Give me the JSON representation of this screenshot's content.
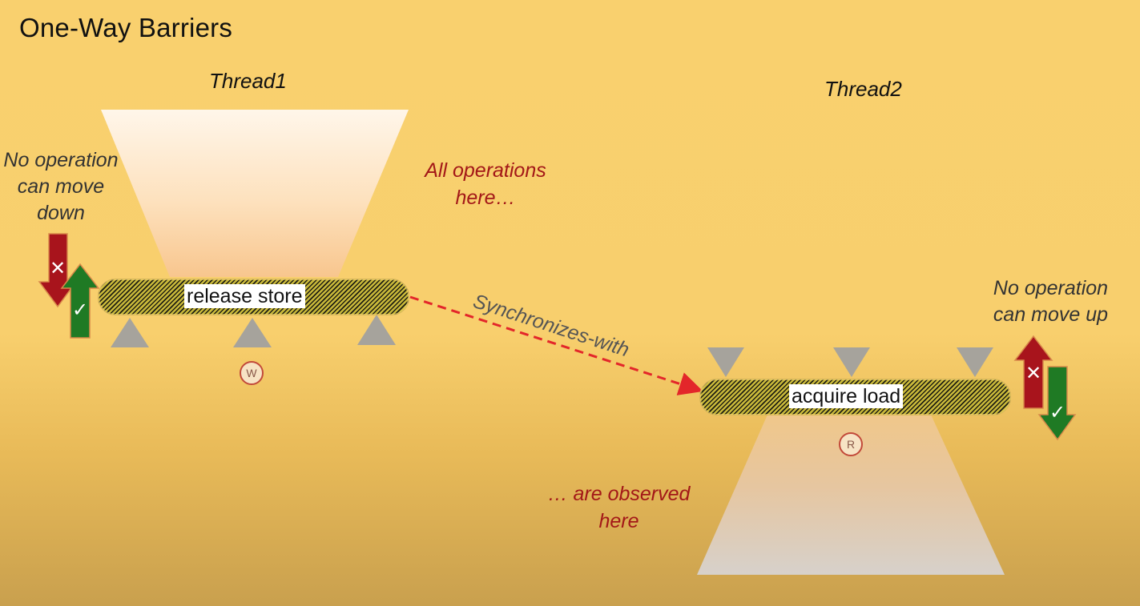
{
  "slide": {
    "title": "One-Way Barriers"
  },
  "thread1": {
    "label": "Thread1",
    "barrier_label": "release store",
    "marker": "W",
    "rule": "No operation can move down"
  },
  "thread2": {
    "label": "Thread2",
    "barrier_label": "acquire load",
    "marker": "R",
    "rule": "No operation can move up"
  },
  "notes": {
    "all_operations_line1": "All operations",
    "all_operations_line2": "here…",
    "observed_line1": "… are observed",
    "observed_line2": "here",
    "sync": "Synchronizes-with"
  },
  "colors": {
    "background": "#f9d06e",
    "red_arrow": "#a8141c",
    "green_arrow": "#1f7a24",
    "note_red": "#a31818",
    "sync_arrow": "#e3262a"
  },
  "icons": {
    "cross": "✕",
    "check": "✓"
  }
}
